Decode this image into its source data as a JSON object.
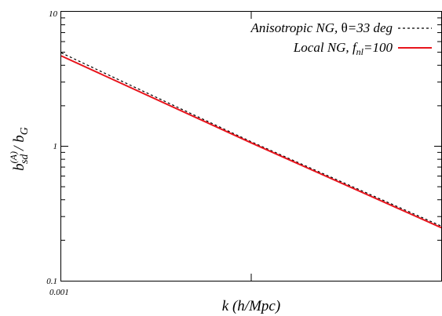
{
  "chart_data": {
    "type": "line",
    "xlabel": "k (h/Mpc)",
    "ylabel": {
      "base": "b",
      "sup": "(A)",
      "sub": "sd",
      "rest": " / b",
      "rest_sub": "G"
    },
    "x_scale": "log",
    "y_scale": "log",
    "ylim": [
      0.1,
      10
    ],
    "xlim": [
      0.001,
      0.1
    ],
    "y_ticks": [
      "10",
      "1",
      "0.1"
    ],
    "x_ticks": [
      "0.001"
    ],
    "grid": false,
    "legend_position": "top-right",
    "series": [
      {
        "name": "Anisotropic NG, θ=33 deg",
        "name_parts": {
          "pre": "Anisotropic NG, ",
          "greek": "θ",
          "post": "=33 deg"
        },
        "color": "#000000",
        "style": "dashed",
        "x": [
          0.001,
          0.01,
          0.1
        ],
        "values": [
          4.95,
          1.08,
          0.255
        ]
      },
      {
        "name": "Local NG, f_nl=100",
        "name_parts": {
          "pre": "Local NG, ",
          "f": "f",
          "sub": "nl",
          "post": "=100"
        },
        "color": "#e8141c",
        "style": "solid",
        "x": [
          0.001,
          0.01,
          0.1
        ],
        "values": [
          4.7,
          1.06,
          0.248
        ]
      }
    ]
  }
}
